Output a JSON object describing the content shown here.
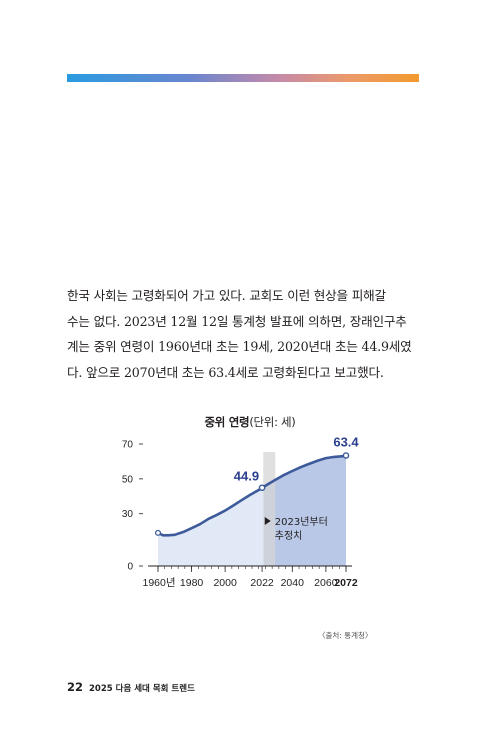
{
  "paragraph": [
    "한국 사회는 고령화되어 가고 있다. 교회도 이런 현상을 피해갈",
    "수는 없다. 2023년 12월 12일 통계청 발표에 의하면, 장래인구추",
    "계는 중위 연령이 1960년대 초는 19세, 2020년대 초는 44.9세였",
    "다. 앞으로 2070년대 초는 63.4세로 고령화된다고 보고했다."
  ],
  "chart_title_main": "중위 연령",
  "chart_title_unit": "(단위: 세)",
  "source": "〈출처: 통계청〉",
  "footer": {
    "page_number": "22",
    "book_title": "2025 다음 세대 목회 트렌드"
  },
  "colors": {
    "line": "#3d5a9a",
    "actual_fill": "#e1e9f6",
    "projection_fill": "#b9c8e7",
    "projection_band": "#d5d5d5",
    "label_accent": "#2b3f8f",
    "bar_gradient": [
      "#2a9be0",
      "#6a86cf",
      "#c48aa9",
      "#ec9a6a",
      "#f29a2e"
    ]
  },
  "chart_data": {
    "type": "area",
    "title": "중위 연령",
    "unit": "(단위: 세)",
    "xlim": [
      1960,
      2072
    ],
    "ylim": [
      0,
      70
    ],
    "yticks": [
      0,
      30,
      50,
      70
    ],
    "xticks": [
      {
        "value": 1960,
        "label": "1960년"
      },
      {
        "value": 1980,
        "label": "1980"
      },
      {
        "value": 2000,
        "label": "2000"
      },
      {
        "value": 2022,
        "label": "2022"
      },
      {
        "value": 2040,
        "label": "2040"
      },
      {
        "value": 2060,
        "label": "2060"
      },
      {
        "value": 2072,
        "label": "2072"
      }
    ],
    "x": [
      1960,
      1963,
      1966,
      1970,
      1975,
      1980,
      1985,
      1990,
      1995,
      2000,
      2005,
      2010,
      2015,
      2020,
      2022,
      2025,
      2030,
      2035,
      2040,
      2045,
      2050,
      2055,
      2060,
      2065,
      2070,
      2072
    ],
    "y": [
      19.0,
      17.6,
      17.6,
      17.9,
      19.5,
      21.7,
      24.0,
      27.0,
      29.3,
      31.8,
      34.8,
      37.9,
      40.9,
      43.6,
      44.9,
      46.6,
      49.5,
      52.2,
      54.5,
      56.7,
      58.6,
      60.4,
      61.9,
      62.6,
      63.0,
      63.4
    ],
    "projection_start": 2023,
    "annotations": [
      {
        "x": 2022,
        "y": 44.9,
        "label": "44.9"
      },
      {
        "x": 2072,
        "y": 63.4,
        "label": "63.4"
      }
    ],
    "projection_label": [
      "2023년부터",
      "추정치"
    ]
  }
}
